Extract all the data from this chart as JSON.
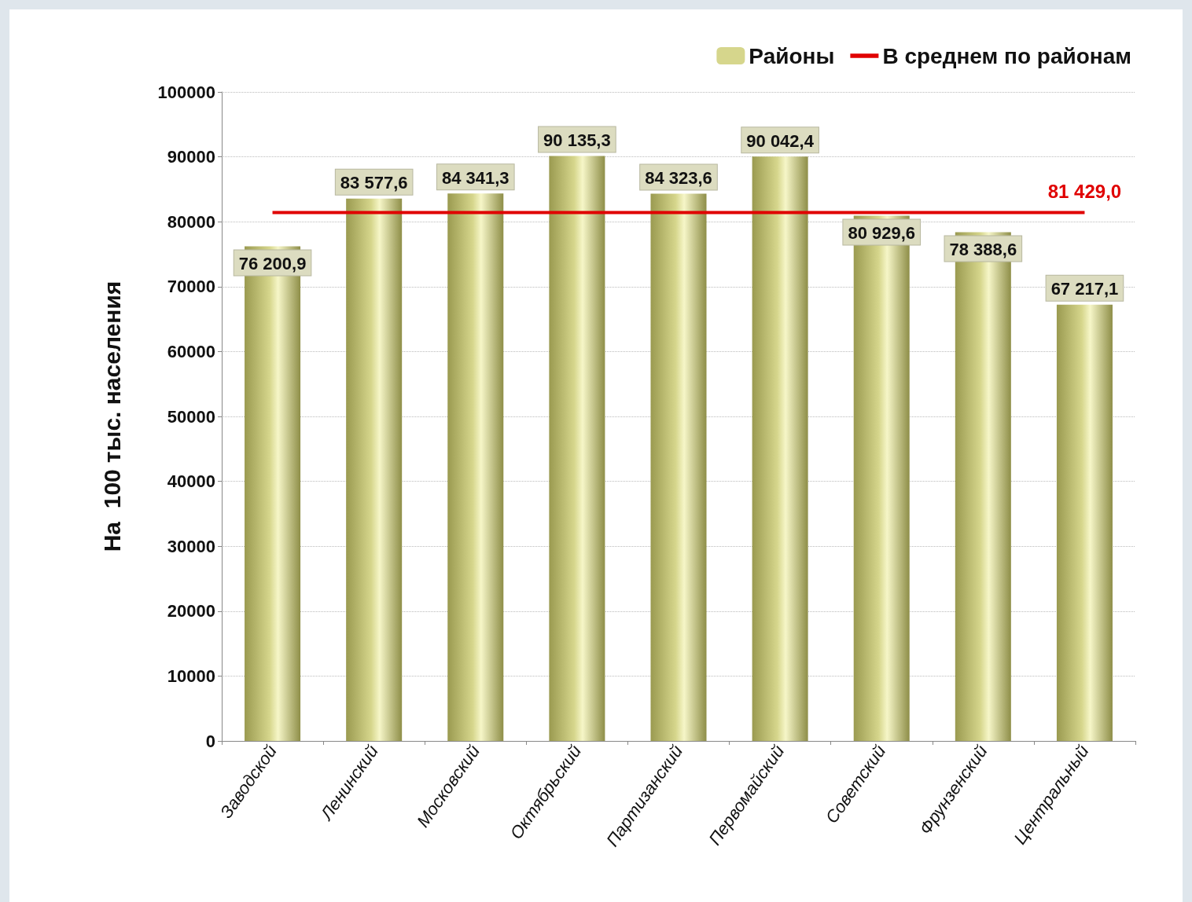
{
  "chart_data": {
    "type": "bar",
    "ylabel": "На  100 тыс. населения",
    "categories": [
      "Заводской",
      "Ленинский",
      "Московский",
      "Октябрьский",
      "Партизанский",
      "Первомайский",
      "Советский",
      "Фрунзенский",
      "Центральный"
    ],
    "series": [
      {
        "name": "Районы",
        "color": "#d6d68c",
        "values": [
          76200.9,
          83577.6,
          84341.3,
          90135.3,
          84323.6,
          90042.4,
          80929.6,
          78388.6,
          67217.1
        ],
        "value_labels": [
          "76 200,9",
          "83 577,6",
          "84 341,3",
          "90 135,3",
          "84 323,6",
          "90 042,4",
          "80 929,6",
          "78 388,6",
          "67 217,1"
        ]
      },
      {
        "name": "В среднем по районам",
        "type": "line",
        "color": "#e00000",
        "values": [
          81429.0,
          81429.0,
          81429.0,
          81429.0,
          81429.0,
          81429.0,
          81429.0,
          81429.0,
          81429.0
        ],
        "value_labels": [
          null,
          null,
          null,
          null,
          null,
          null,
          null,
          null,
          "81 429,0"
        ]
      }
    ],
    "ylim": [
      0,
      100000
    ],
    "yticks": [
      0,
      10000,
      20000,
      30000,
      40000,
      50000,
      60000,
      70000,
      80000,
      90000,
      100000
    ],
    "grid": "y",
    "legend": "top right",
    "marker": "none",
    "line_style": "solid"
  }
}
